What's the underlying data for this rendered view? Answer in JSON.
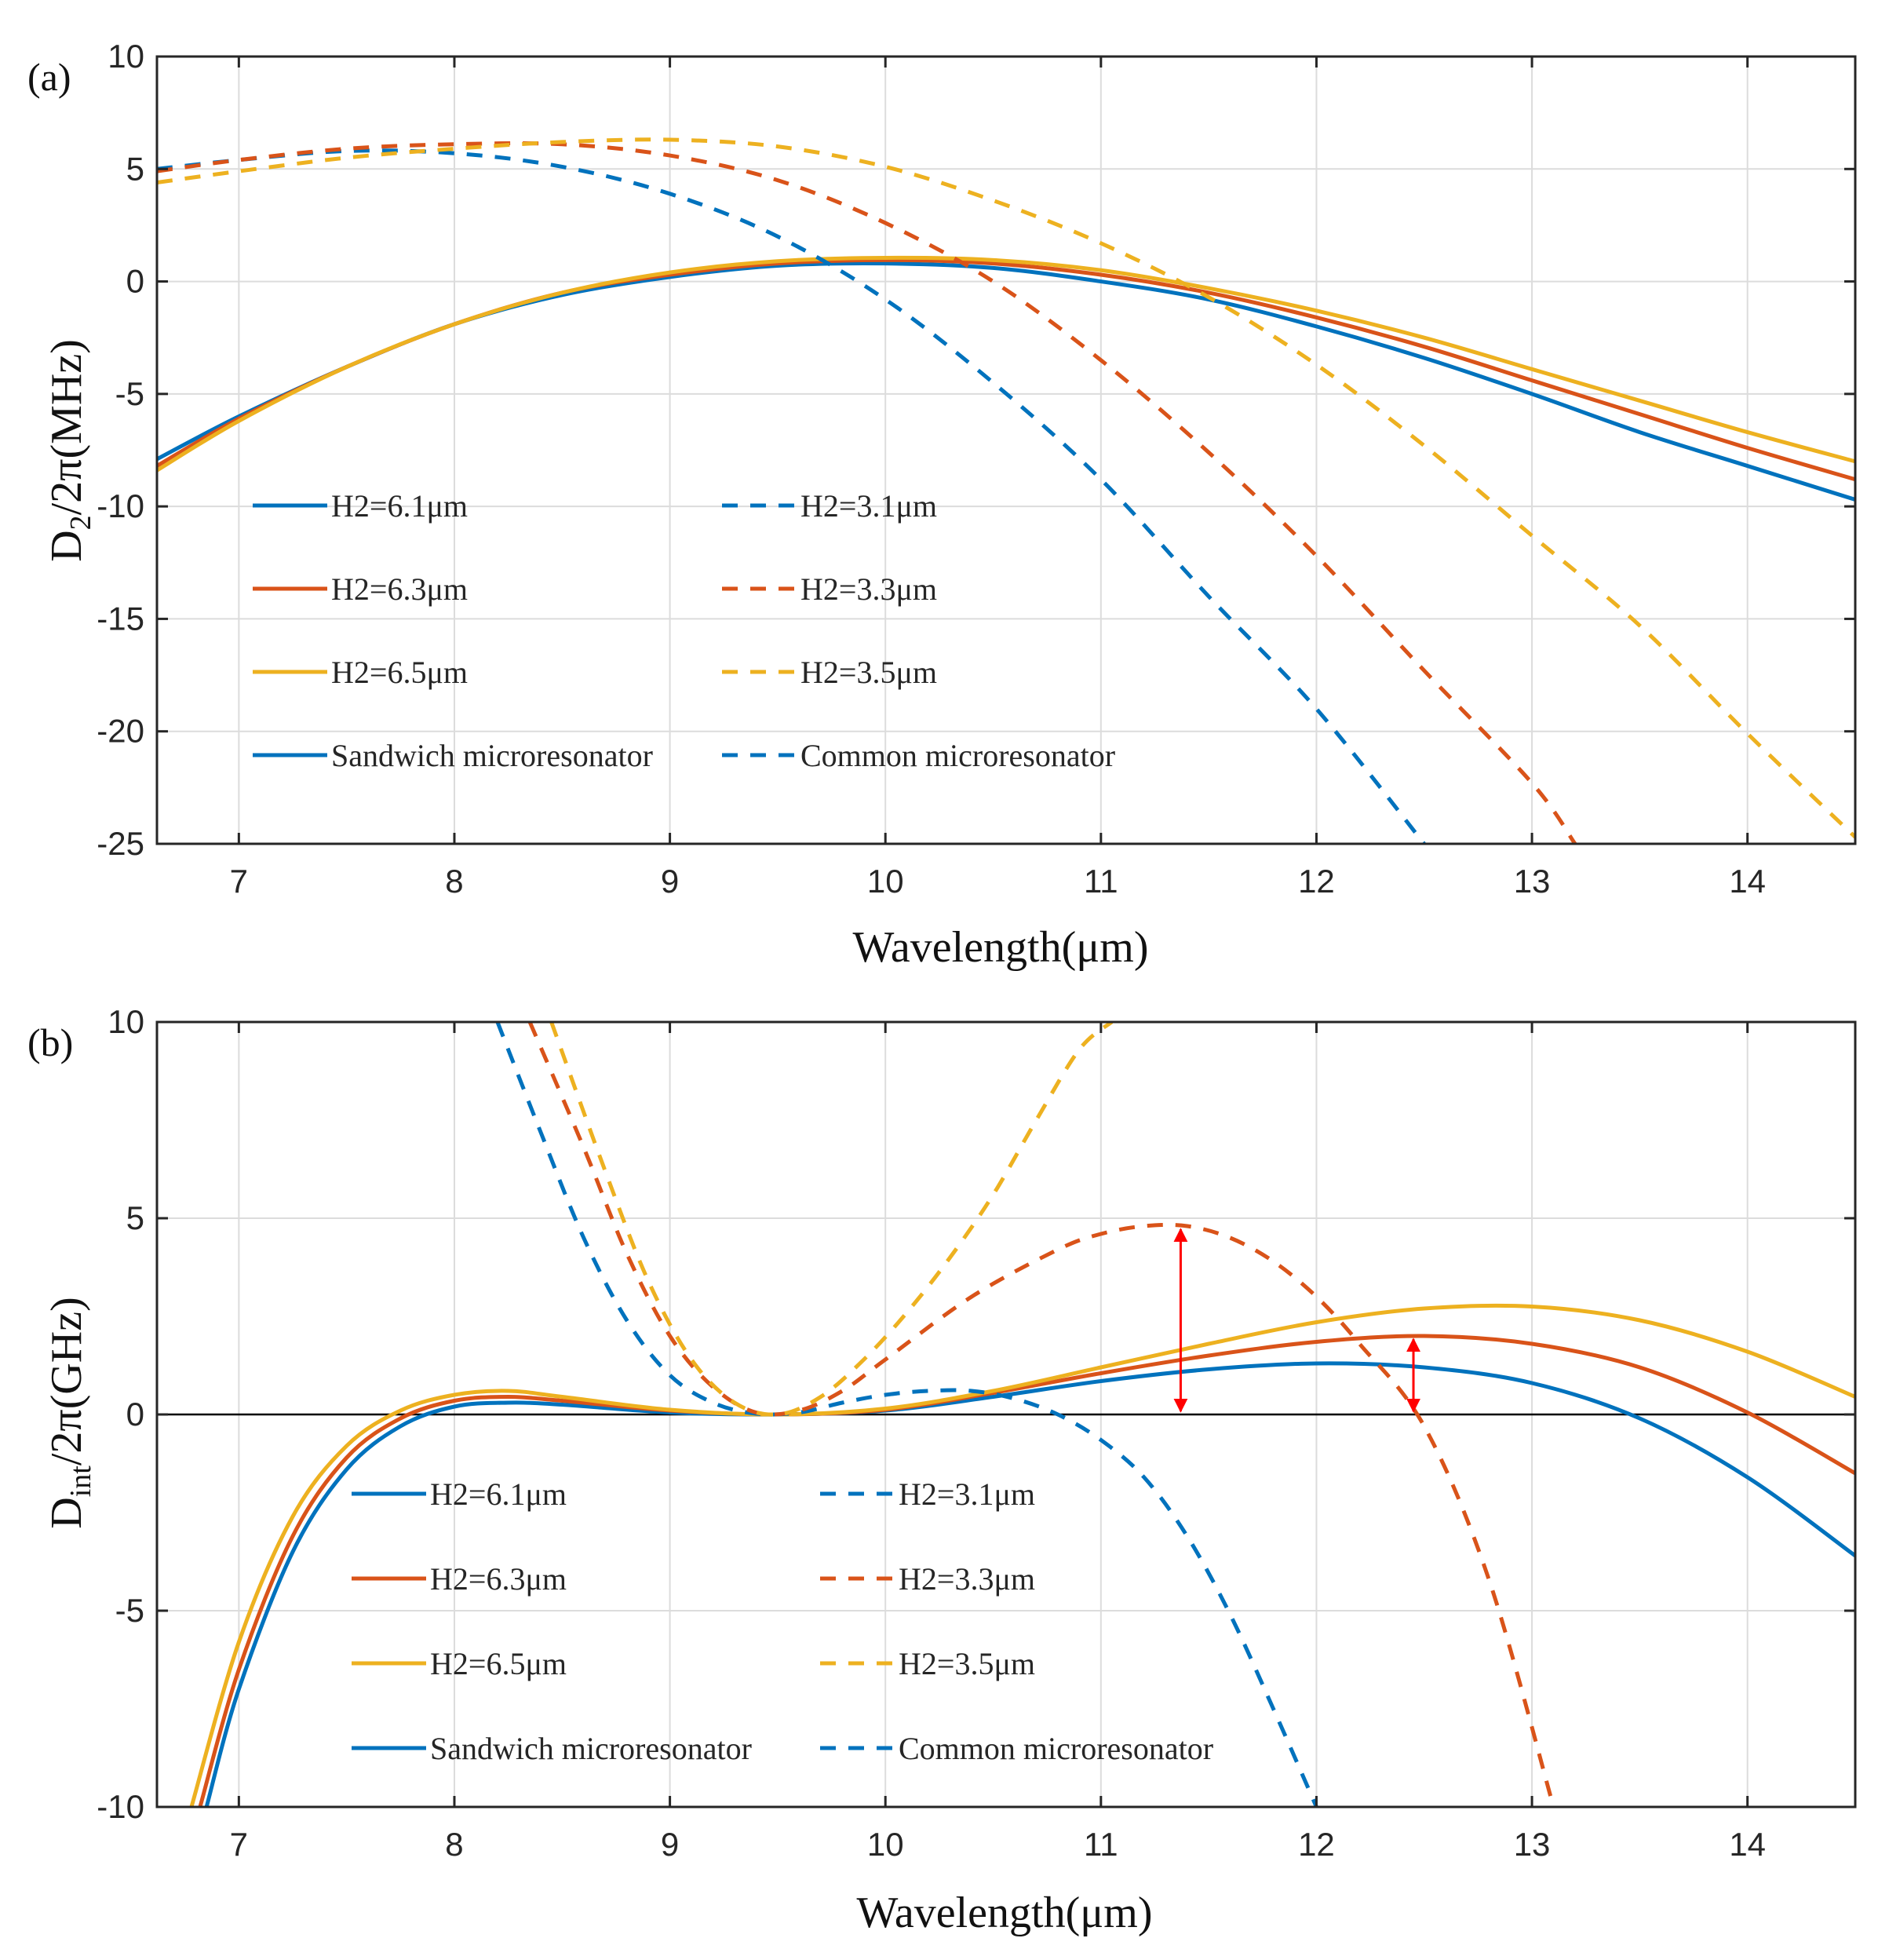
{
  "colors": {
    "blue": "#0072BD",
    "orange": "#D95319",
    "yellow": "#EDB120",
    "arrow": "#FF0000",
    "grid": "#DCDCDC",
    "axis": "#262626"
  },
  "chart_data": [
    {
      "type": "line",
      "panel_label": "(a)",
      "xlabel": "Wavelength(μm)",
      "ylabel_prefix": "D",
      "ylabel_sub": "2",
      "ylabel_suffix": "/2π(MHz)",
      "xlim": [
        6.62,
        14.5
      ],
      "ylim": [
        -25,
        10
      ],
      "xticks": [
        7,
        8,
        9,
        10,
        11,
        12,
        13,
        14
      ],
      "yticks": [
        10,
        5,
        0,
        -5,
        -10,
        -15,
        -20,
        -25
      ],
      "grid": true,
      "legend": [
        [
          "H2=6.1μm",
          "H2=3.1μm"
        ],
        [
          "H2=6.3μm",
          "H2=3.3μm"
        ],
        [
          "H2=6.5μm",
          "H2=3.5μm"
        ],
        [
          "Sandwich microresonator",
          "Common microresonator"
        ]
      ],
      "series": [
        {
          "name": "H2=6.1μm",
          "color": "blue",
          "dash": false,
          "x": [
            6.62,
            7,
            7.5,
            8,
            8.5,
            9,
            9.5,
            10,
            10.5,
            11,
            11.5,
            12,
            12.5,
            13,
            13.5,
            14,
            14.5
          ],
          "y": [
            -7.9,
            -6.0,
            -3.8,
            -1.9,
            -0.6,
            0.2,
            0.7,
            0.8,
            0.6,
            0.0,
            -0.8,
            -2.0,
            -3.4,
            -5.0,
            -6.7,
            -8.2,
            -9.7
          ]
        },
        {
          "name": "H2=6.3μm",
          "color": "orange",
          "dash": false,
          "x": [
            6.62,
            7,
            7.5,
            8,
            8.5,
            9,
            9.5,
            10,
            10.5,
            11,
            11.5,
            12,
            12.5,
            13,
            13.5,
            14,
            14.5
          ],
          "y": [
            -8.2,
            -6.1,
            -3.8,
            -1.9,
            -0.5,
            0.3,
            0.8,
            0.95,
            0.8,
            0.3,
            -0.5,
            -1.6,
            -2.9,
            -4.4,
            -5.9,
            -7.4,
            -8.8
          ]
        },
        {
          "name": "H2=6.5μm",
          "color": "yellow",
          "dash": false,
          "x": [
            6.62,
            7,
            7.5,
            8,
            8.5,
            9,
            9.5,
            10,
            10.5,
            11,
            11.5,
            12,
            12.5,
            13,
            13.5,
            14,
            14.5
          ],
          "y": [
            -8.4,
            -6.2,
            -3.8,
            -1.9,
            -0.5,
            0.4,
            0.9,
            1.05,
            0.95,
            0.5,
            -0.3,
            -1.3,
            -2.5,
            -3.9,
            -5.3,
            -6.7,
            -8.0
          ]
        },
        {
          "name": "H2=3.1μm",
          "color": "blue",
          "dash": true,
          "x": [
            6.62,
            7,
            7.5,
            8,
            8.5,
            9,
            9.5,
            10,
            10.5,
            11,
            11.5,
            12,
            12.5
          ],
          "y": [
            5.0,
            5.4,
            5.8,
            5.7,
            5.1,
            3.9,
            2.0,
            -0.8,
            -4.5,
            -8.8,
            -14.0,
            -19.0,
            -25.0
          ]
        },
        {
          "name": "H2=3.3μm",
          "color": "orange",
          "dash": true,
          "x": [
            6.62,
            7,
            7.5,
            8,
            8.5,
            9,
            9.5,
            10,
            10.5,
            11,
            11.5,
            12,
            12.5,
            13,
            13.2
          ],
          "y": [
            4.9,
            5.4,
            5.9,
            6.1,
            6.1,
            5.6,
            4.5,
            2.6,
            0.0,
            -3.5,
            -7.6,
            -12.2,
            -17.3,
            -22.3,
            -25.0
          ]
        },
        {
          "name": "H2=3.5μm",
          "color": "yellow",
          "dash": true,
          "x": [
            6.62,
            7,
            7.5,
            8,
            8.5,
            9,
            9.5,
            10,
            10.5,
            11,
            11.5,
            12,
            12.5,
            13,
            13.5,
            14,
            14.5
          ],
          "y": [
            4.4,
            4.9,
            5.5,
            5.9,
            6.2,
            6.3,
            6.0,
            5.1,
            3.6,
            1.7,
            -0.7,
            -3.7,
            -7.3,
            -11.3,
            -15.3,
            -20.1,
            -24.7
          ]
        }
      ]
    },
    {
      "type": "line",
      "panel_label": "(b)",
      "xlabel": "Wavelength(μm)",
      "ylabel_prefix": "D",
      "ylabel_sub": "int",
      "ylabel_suffix": "/2π(GHz)",
      "xlim": [
        6.62,
        14.5
      ],
      "ylim": [
        -10,
        10
      ],
      "xticks": [
        7,
        8,
        9,
        10,
        11,
        12,
        13,
        14
      ],
      "yticks": [
        10,
        5,
        0,
        -5,
        -10
      ],
      "grid": true,
      "zero_line": true,
      "legend": [
        [
          "H2=6.1μm",
          "H2=3.1μm"
        ],
        [
          "H2=6.3μm",
          "H2=3.3μm"
        ],
        [
          "H2=6.5μm",
          "H2=3.5μm"
        ],
        [
          "Sandwich microresonator",
          "Common microresonator"
        ]
      ],
      "arrows": [
        {
          "x": 11.37,
          "y1": 0,
          "y2": 4.8
        },
        {
          "x": 12.45,
          "y1": 0,
          "y2": 2.0
        }
      ],
      "series": [
        {
          "name": "H2=6.1μm",
          "color": "blue",
          "dash": false,
          "x": [
            6.85,
            7,
            7.25,
            7.5,
            7.75,
            8,
            8.25,
            8.5,
            9,
            9.5,
            10,
            10.5,
            11,
            11.5,
            12,
            12.5,
            13,
            13.5,
            14,
            14.5
          ],
          "y": [
            -10.0,
            -7.0,
            -3.5,
            -1.4,
            -0.3,
            0.2,
            0.3,
            0.25,
            0.05,
            0.0,
            0.1,
            0.45,
            0.85,
            1.15,
            1.3,
            1.2,
            0.8,
            -0.1,
            -1.6,
            -3.6
          ]
        },
        {
          "name": "H2=6.3μm",
          "color": "orange",
          "dash": false,
          "x": [
            6.82,
            7,
            7.25,
            7.5,
            7.75,
            8,
            8.25,
            8.5,
            9,
            9.5,
            10,
            10.5,
            11,
            11.5,
            12,
            12.5,
            13,
            13.5,
            14,
            14.5
          ],
          "y": [
            -10.0,
            -6.5,
            -3.1,
            -1.1,
            -0.1,
            0.35,
            0.45,
            0.35,
            0.1,
            0.0,
            0.12,
            0.55,
            1.05,
            1.5,
            1.85,
            2.0,
            1.8,
            1.2,
            0.05,
            -1.5
          ]
        },
        {
          "name": "H2=6.5μm",
          "color": "yellow",
          "dash": false,
          "x": [
            6.78,
            7,
            7.25,
            7.5,
            7.75,
            8,
            8.25,
            8.5,
            9,
            9.5,
            10,
            10.5,
            11,
            11.5,
            12,
            12.5,
            13,
            13.5,
            14,
            14.5
          ],
          "y": [
            -10.0,
            -5.8,
            -2.6,
            -0.8,
            0.1,
            0.5,
            0.6,
            0.45,
            0.12,
            0.0,
            0.15,
            0.6,
            1.2,
            1.8,
            2.35,
            2.7,
            2.75,
            2.4,
            1.6,
            0.45
          ]
        },
        {
          "name": "H2=3.1μm",
          "color": "blue",
          "dash": true,
          "x": [
            8.2,
            8.4,
            8.6,
            8.8,
            9,
            9.2,
            9.4,
            9.6,
            9.8,
            10,
            10.2,
            10.4,
            10.6,
            10.8,
            11,
            11.2,
            11.4,
            11.6,
            11.8,
            12.0
          ],
          "y": [
            10.0,
            7.2,
            4.5,
            2.4,
            1.0,
            0.3,
            0.02,
            0.05,
            0.3,
            0.5,
            0.6,
            0.6,
            0.4,
            0.0,
            -0.65,
            -1.6,
            -3.1,
            -5.1,
            -7.5,
            -10.0
          ]
        },
        {
          "name": "H2=3.3μm",
          "color": "orange",
          "dash": true,
          "x": [
            8.35,
            8.6,
            8.8,
            9,
            9.2,
            9.4,
            9.6,
            9.8,
            10,
            10.4,
            10.8,
            11,
            11.2,
            11.4,
            11.6,
            11.8,
            12,
            12.2,
            12.5,
            12.8,
            13.1
          ],
          "y": [
            10.0,
            6.8,
            4.1,
            2.0,
            0.7,
            0.05,
            0.1,
            0.6,
            1.4,
            3.0,
            4.2,
            4.6,
            4.8,
            4.8,
            4.5,
            3.9,
            3.0,
            1.8,
            -0.3,
            -4.2,
            -10.0
          ]
        },
        {
          "name": "H2=3.5μm",
          "color": "yellow",
          "dash": true,
          "x": [
            8.45,
            8.7,
            8.9,
            9.1,
            9.3,
            9.5,
            9.7,
            9.9,
            10.1,
            10.3,
            10.5,
            10.7,
            10.9,
            11.05
          ],
          "y": [
            10.0,
            6.2,
            3.4,
            1.4,
            0.3,
            0.0,
            0.45,
            1.4,
            2.6,
            4.0,
            5.6,
            7.5,
            9.3,
            10.0
          ]
        }
      ]
    }
  ]
}
